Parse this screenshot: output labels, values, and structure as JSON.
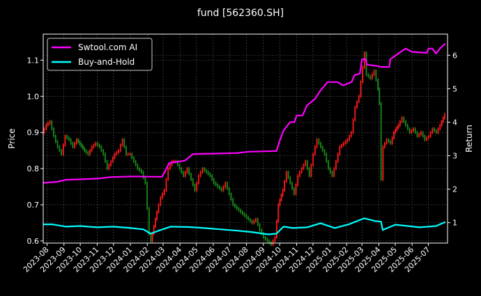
{
  "chart_data": {
    "type": "candlestick+line",
    "title": "fund [562360.SH]",
    "ylabel_left": "Price",
    "ylabel_right": "Return",
    "ylim_left": [
      0.594,
      1.172
    ],
    "ylim_right": [
      0.39,
      6.63
    ],
    "yticks_left": [
      "0.6",
      "0.7",
      "0.8",
      "0.9",
      "1.0",
      "1.1"
    ],
    "yticks_right": [
      "1",
      "2",
      "3",
      "4",
      "5",
      "6"
    ],
    "xlim": [
      "2023-07-25",
      "2025-08-05"
    ],
    "xticks": [
      "2023-08",
      "2023-09",
      "2023-10",
      "2023-11",
      "2023-12",
      "2024-01",
      "2024-02",
      "2024-03",
      "2024-04",
      "2024-05",
      "2024-06",
      "2024-07",
      "2024-08",
      "2024-09",
      "2024-10",
      "2024-11",
      "2024-12",
      "2025-01",
      "2025-02",
      "2025-03",
      "2025-04",
      "2025-05",
      "2025-06",
      "2025-07"
    ],
    "grid": true,
    "legend_position": "top-left",
    "colors": {
      "up": "#ff1a1a",
      "down": "#1a8c1a",
      "strategy": "#ff00ff",
      "buy_hold": "#00ffff",
      "background": "#000000"
    },
    "price": [
      [
        "2023-07-25",
        0.9
      ],
      [
        "2023-08-01",
        0.92
      ],
      [
        "2023-08-08",
        0.93
      ],
      [
        "2023-08-15",
        0.89
      ],
      [
        "2023-08-22",
        0.86
      ],
      [
        "2023-08-29",
        0.84
      ],
      [
        "2023-09-05",
        0.89
      ],
      [
        "2023-09-12",
        0.88
      ],
      [
        "2023-09-19",
        0.86
      ],
      [
        "2023-09-26",
        0.88
      ],
      [
        "2023-10-10",
        0.85
      ],
      [
        "2023-10-17",
        0.84
      ],
      [
        "2023-10-24",
        0.86
      ],
      [
        "2023-10-31",
        0.87
      ],
      [
        "2023-11-07",
        0.86
      ],
      [
        "2023-11-14",
        0.84
      ],
      [
        "2023-11-21",
        0.8
      ],
      [
        "2023-11-28",
        0.82
      ],
      [
        "2023-12-05",
        0.84
      ],
      [
        "2023-12-12",
        0.85
      ],
      [
        "2023-12-19",
        0.88
      ],
      [
        "2023-12-26",
        0.84
      ],
      [
        "2024-01-02",
        0.84
      ],
      [
        "2024-01-09",
        0.82
      ],
      [
        "2024-01-16",
        0.8
      ],
      [
        "2024-01-23",
        0.79
      ],
      [
        "2024-01-30",
        0.76
      ],
      [
        "2024-02-06",
        0.62
      ],
      [
        "2024-02-09",
        0.6
      ],
      [
        "2024-02-20",
        0.68
      ],
      [
        "2024-02-27",
        0.72
      ],
      [
        "2024-03-05",
        0.74
      ],
      [
        "2024-03-12",
        0.8
      ],
      [
        "2024-03-19",
        0.82
      ],
      [
        "2024-03-26",
        0.82
      ],
      [
        "2024-04-02",
        0.8
      ],
      [
        "2024-04-09",
        0.78
      ],
      [
        "2024-04-16",
        0.8
      ],
      [
        "2024-04-23",
        0.77
      ],
      [
        "2024-04-30",
        0.74
      ],
      [
        "2024-05-07",
        0.78
      ],
      [
        "2024-05-14",
        0.8
      ],
      [
        "2024-05-21",
        0.79
      ],
      [
        "2024-05-28",
        0.78
      ],
      [
        "2024-06-04",
        0.76
      ],
      [
        "2024-06-11",
        0.75
      ],
      [
        "2024-06-18",
        0.74
      ],
      [
        "2024-06-25",
        0.76
      ],
      [
        "2024-07-02",
        0.73
      ],
      [
        "2024-07-09",
        0.7
      ],
      [
        "2024-07-16",
        0.69
      ],
      [
        "2024-07-23",
        0.68
      ],
      [
        "2024-07-30",
        0.67
      ],
      [
        "2024-08-06",
        0.66
      ],
      [
        "2024-08-13",
        0.65
      ],
      [
        "2024-08-20",
        0.66
      ],
      [
        "2024-08-27",
        0.63
      ],
      [
        "2024-09-03",
        0.61
      ],
      [
        "2024-09-10",
        0.6
      ],
      [
        "2024-09-17",
        0.59
      ],
      [
        "2024-09-24",
        0.61
      ],
      [
        "2024-09-30",
        0.7
      ],
      [
        "2024-10-08",
        0.74
      ],
      [
        "2024-10-15",
        0.79
      ],
      [
        "2024-10-22",
        0.76
      ],
      [
        "2024-10-29",
        0.73
      ],
      [
        "2024-11-05",
        0.78
      ],
      [
        "2024-11-12",
        0.8
      ],
      [
        "2024-11-19",
        0.82
      ],
      [
        "2024-11-26",
        0.78
      ],
      [
        "2024-12-03",
        0.84
      ],
      [
        "2024-12-10",
        0.88
      ],
      [
        "2024-12-17",
        0.86
      ],
      [
        "2024-12-24",
        0.84
      ],
      [
        "2024-12-31",
        0.8
      ],
      [
        "2025-01-07",
        0.78
      ],
      [
        "2025-01-14",
        0.82
      ],
      [
        "2025-01-21",
        0.86
      ],
      [
        "2025-01-28",
        0.87
      ],
      [
        "2025-02-04",
        0.88
      ],
      [
        "2025-02-11",
        0.9
      ],
      [
        "2025-02-18",
        0.97
      ],
      [
        "2025-02-25",
        1.0
      ],
      [
        "2025-03-04",
        1.08
      ],
      [
        "2025-03-07",
        1.12
      ],
      [
        "2025-03-11",
        1.06
      ],
      [
        "2025-03-18",
        1.05
      ],
      [
        "2025-03-25",
        1.07
      ],
      [
        "2025-04-01",
        1.02
      ],
      [
        "2025-04-03",
        0.98
      ],
      [
        "2025-04-07",
        0.77
      ],
      [
        "2025-04-10",
        0.86
      ],
      [
        "2025-04-17",
        0.88
      ],
      [
        "2025-04-24",
        0.87
      ],
      [
        "2025-04-30",
        0.9
      ],
      [
        "2025-05-08",
        0.92
      ],
      [
        "2025-05-15",
        0.94
      ],
      [
        "2025-05-22",
        0.92
      ],
      [
        "2025-05-29",
        0.9
      ],
      [
        "2025-06-05",
        0.91
      ],
      [
        "2025-06-12",
        0.89
      ],
      [
        "2025-06-19",
        0.9
      ],
      [
        "2025-06-26",
        0.88
      ],
      [
        "2025-07-03",
        0.89
      ],
      [
        "2025-07-10",
        0.91
      ],
      [
        "2025-07-17",
        0.9
      ],
      [
        "2025-07-24",
        0.92
      ],
      [
        "2025-08-01",
        0.95
      ]
    ],
    "series": [
      {
        "name": "Swtool.com AI",
        "axis": "right",
        "points": [
          [
            "2023-07-25",
            2.19
          ],
          [
            "2023-08-20",
            2.22
          ],
          [
            "2023-09-05",
            2.28
          ],
          [
            "2023-10-10",
            2.3
          ],
          [
            "2023-11-05",
            2.32
          ],
          [
            "2023-11-25",
            2.36
          ],
          [
            "2024-01-05",
            2.38
          ],
          [
            "2024-02-15",
            2.37
          ],
          [
            "2024-02-28",
            2.37
          ],
          [
            "2024-03-05",
            2.55
          ],
          [
            "2024-03-12",
            2.78
          ],
          [
            "2024-04-10",
            2.85
          ],
          [
            "2024-04-25",
            3.05
          ],
          [
            "2024-06-01",
            3.06
          ],
          [
            "2024-07-15",
            3.08
          ],
          [
            "2024-08-05",
            3.12
          ],
          [
            "2024-09-25",
            3.14
          ],
          [
            "2024-09-30",
            3.4
          ],
          [
            "2024-10-08",
            3.75
          ],
          [
            "2024-10-20",
            4.0
          ],
          [
            "2024-10-28",
            4.0
          ],
          [
            "2024-11-01",
            4.2
          ],
          [
            "2024-11-12",
            4.2
          ],
          [
            "2024-11-20",
            4.5
          ],
          [
            "2024-12-05",
            4.7
          ],
          [
            "2024-12-15",
            4.95
          ],
          [
            "2024-12-28",
            5.2
          ],
          [
            "2025-01-15",
            5.2
          ],
          [
            "2025-01-25",
            5.1
          ],
          [
            "2025-02-10",
            5.2
          ],
          [
            "2025-02-15",
            5.4
          ],
          [
            "2025-02-25",
            5.45
          ],
          [
            "2025-03-01",
            5.88
          ],
          [
            "2025-03-08",
            5.88
          ],
          [
            "2025-03-10",
            5.72
          ],
          [
            "2025-03-28",
            5.68
          ],
          [
            "2025-04-05",
            5.65
          ],
          [
            "2025-04-20",
            5.65
          ],
          [
            "2025-04-22",
            5.88
          ],
          [
            "2025-05-05",
            6.03
          ],
          [
            "2025-05-20",
            6.2
          ],
          [
            "2025-06-01",
            6.1
          ],
          [
            "2025-06-28",
            6.07
          ],
          [
            "2025-07-01",
            6.2
          ],
          [
            "2025-07-08",
            6.2
          ],
          [
            "2025-07-15",
            6.05
          ],
          [
            "2025-07-22",
            6.2
          ],
          [
            "2025-08-01",
            6.35
          ]
        ]
      },
      {
        "name": "Buy-and-Hold",
        "axis": "right",
        "points": [
          [
            "2023-07-25",
            0.95
          ],
          [
            "2023-08-10",
            0.95
          ],
          [
            "2023-09-05",
            0.88
          ],
          [
            "2023-10-01",
            0.9
          ],
          [
            "2023-11-01",
            0.86
          ],
          [
            "2023-12-01",
            0.88
          ],
          [
            "2024-01-01",
            0.84
          ],
          [
            "2024-01-25",
            0.8
          ],
          [
            "2024-02-07",
            0.67
          ],
          [
            "2024-02-25",
            0.78
          ],
          [
            "2024-03-15",
            0.88
          ],
          [
            "2024-04-15",
            0.87
          ],
          [
            "2024-05-15",
            0.84
          ],
          [
            "2024-06-15",
            0.8
          ],
          [
            "2024-07-15",
            0.76
          ],
          [
            "2024-08-10",
            0.72
          ],
          [
            "2024-09-10",
            0.65
          ],
          [
            "2024-09-25",
            0.67
          ],
          [
            "2024-10-08",
            0.88
          ],
          [
            "2024-10-25",
            0.84
          ],
          [
            "2024-11-20",
            0.86
          ],
          [
            "2024-12-15",
            0.98
          ],
          [
            "2025-01-10",
            0.84
          ],
          [
            "2025-02-05",
            0.95
          ],
          [
            "2025-03-05",
            1.13
          ],
          [
            "2025-03-25",
            1.05
          ],
          [
            "2025-04-05",
            1.03
          ],
          [
            "2025-04-08",
            0.78
          ],
          [
            "2025-05-01",
            0.94
          ],
          [
            "2025-06-15",
            0.86
          ],
          [
            "2025-07-15",
            0.9
          ],
          [
            "2025-08-01",
            1.02
          ]
        ]
      }
    ]
  }
}
